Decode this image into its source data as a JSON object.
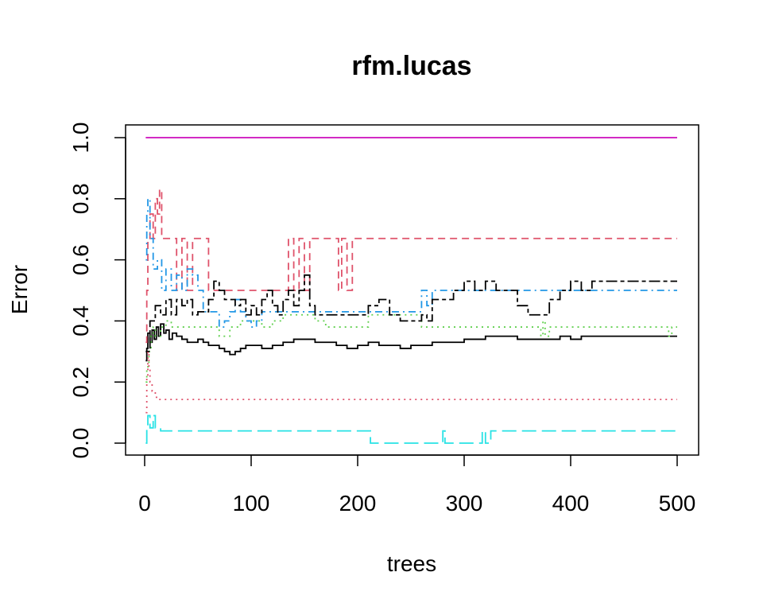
{
  "chart_data": {
    "type": "line",
    "title": "rfm.lucas",
    "xlabel": "trees",
    "ylabel": "Error",
    "xlim": [
      0,
      500
    ],
    "ylim": [
      0,
      1
    ],
    "xticks": [
      "0",
      "100",
      "200",
      "300",
      "400",
      "500"
    ],
    "yticks": [
      "0.0",
      "0.2",
      "0.4",
      "0.6",
      "0.8",
      "1.0"
    ],
    "grid": false,
    "legend": "none",
    "series": [
      {
        "color": "#000000",
        "dash": "solid",
        "points": [
          [
            1,
            0.27
          ],
          [
            2,
            0.31
          ],
          [
            3,
            0.36
          ],
          [
            5,
            0.33
          ],
          [
            7,
            0.37
          ],
          [
            9,
            0.34
          ],
          [
            11,
            0.38
          ],
          [
            13,
            0.35
          ],
          [
            15,
            0.39
          ],
          [
            18,
            0.36
          ],
          [
            20,
            0.37
          ],
          [
            23,
            0.34
          ],
          [
            26,
            0.36
          ],
          [
            30,
            0.35
          ],
          [
            35,
            0.34
          ],
          [
            40,
            0.33
          ],
          [
            45,
            0.33
          ],
          [
            50,
            0.34
          ],
          [
            55,
            0.33
          ],
          [
            60,
            0.32
          ],
          [
            70,
            0.31
          ],
          [
            75,
            0.3
          ],
          [
            80,
            0.29
          ],
          [
            85,
            0.3
          ],
          [
            90,
            0.31
          ],
          [
            95,
            0.32
          ],
          [
            100,
            0.32
          ],
          [
            110,
            0.31
          ],
          [
            120,
            0.32
          ],
          [
            130,
            0.33
          ],
          [
            140,
            0.34
          ],
          [
            150,
            0.34
          ],
          [
            160,
            0.33
          ],
          [
            170,
            0.33
          ],
          [
            180,
            0.32
          ],
          [
            190,
            0.31
          ],
          [
            200,
            0.32
          ],
          [
            210,
            0.33
          ],
          [
            220,
            0.32
          ],
          [
            230,
            0.32
          ],
          [
            240,
            0.31
          ],
          [
            250,
            0.32
          ],
          [
            260,
            0.32
          ],
          [
            270,
            0.33
          ],
          [
            280,
            0.33
          ],
          [
            290,
            0.33
          ],
          [
            300,
            0.34
          ],
          [
            310,
            0.34
          ],
          [
            320,
            0.35
          ],
          [
            330,
            0.35
          ],
          [
            340,
            0.35
          ],
          [
            350,
            0.34
          ],
          [
            360,
            0.34
          ],
          [
            370,
            0.34
          ],
          [
            380,
            0.34
          ],
          [
            390,
            0.35
          ],
          [
            400,
            0.34
          ],
          [
            410,
            0.35
          ],
          [
            420,
            0.35
          ],
          [
            430,
            0.35
          ],
          [
            440,
            0.35
          ],
          [
            450,
            0.35
          ],
          [
            460,
            0.35
          ],
          [
            470,
            0.35
          ],
          [
            480,
            0.35
          ],
          [
            490,
            0.35
          ],
          [
            500,
            0.35
          ]
        ]
      },
      {
        "color": "#df536b",
        "dash": "dashed",
        "points": [
          [
            1,
            0.33
          ],
          [
            2,
            0.5
          ],
          [
            3,
            0.67
          ],
          [
            5,
            0.75
          ],
          [
            8,
            0.67
          ],
          [
            10,
            0.8
          ],
          [
            12,
            0.75
          ],
          [
            14,
            0.83
          ],
          [
            16,
            0.67
          ],
          [
            20,
            0.67
          ],
          [
            25,
            0.67
          ],
          [
            30,
            0.5
          ],
          [
            35,
            0.67
          ],
          [
            40,
            0.5
          ],
          [
            45,
            0.67
          ],
          [
            55,
            0.67
          ],
          [
            60,
            0.5
          ],
          [
            70,
            0.5
          ],
          [
            80,
            0.5
          ],
          [
            90,
            0.5
          ],
          [
            100,
            0.5
          ],
          [
            110,
            0.5
          ],
          [
            120,
            0.5
          ],
          [
            130,
            0.5
          ],
          [
            135,
            0.67
          ],
          [
            140,
            0.5
          ],
          [
            145,
            0.67
          ],
          [
            150,
            0.5
          ],
          [
            155,
            0.67
          ],
          [
            160,
            0.67
          ],
          [
            170,
            0.67
          ],
          [
            180,
            0.67
          ],
          [
            182,
            0.5
          ],
          [
            185,
            0.67
          ],
          [
            190,
            0.5
          ],
          [
            195,
            0.67
          ],
          [
            200,
            0.67
          ],
          [
            210,
            0.67
          ],
          [
            250,
            0.67
          ],
          [
            300,
            0.67
          ],
          [
            350,
            0.67
          ],
          [
            400,
            0.67
          ],
          [
            450,
            0.67
          ],
          [
            500,
            0.67
          ]
        ]
      },
      {
        "color": "#61d04f",
        "dash": "dotted",
        "points": [
          [
            1,
            0.2
          ],
          [
            2,
            0.25
          ],
          [
            4,
            0.3
          ],
          [
            6,
            0.35
          ],
          [
            8,
            0.38
          ],
          [
            10,
            0.35
          ],
          [
            15,
            0.38
          ],
          [
            20,
            0.4
          ],
          [
            25,
            0.38
          ],
          [
            30,
            0.38
          ],
          [
            40,
            0.38
          ],
          [
            50,
            0.38
          ],
          [
            60,
            0.38
          ],
          [
            70,
            0.35
          ],
          [
            80,
            0.38
          ],
          [
            90,
            0.4
          ],
          [
            100,
            0.4
          ],
          [
            110,
            0.38
          ],
          [
            120,
            0.4
          ],
          [
            130,
            0.42
          ],
          [
            140,
            0.42
          ],
          [
            150,
            0.42
          ],
          [
            160,
            0.4
          ],
          [
            170,
            0.38
          ],
          [
            180,
            0.38
          ],
          [
            200,
            0.38
          ],
          [
            210,
            0.42
          ],
          [
            220,
            0.42
          ],
          [
            240,
            0.42
          ],
          [
            260,
            0.38
          ],
          [
            280,
            0.38
          ],
          [
            300,
            0.38
          ],
          [
            340,
            0.38
          ],
          [
            370,
            0.38
          ],
          [
            372,
            0.35
          ],
          [
            374,
            0.4
          ],
          [
            376,
            0.35
          ],
          [
            380,
            0.38
          ],
          [
            420,
            0.38
          ],
          [
            460,
            0.38
          ],
          [
            490,
            0.38
          ],
          [
            492,
            0.35
          ],
          [
            495,
            0.38
          ],
          [
            500,
            0.38
          ]
        ]
      },
      {
        "color": "#2297e6",
        "dash": "dotdash",
        "points": [
          [
            1,
            0.6
          ],
          [
            2,
            0.75
          ],
          [
            3,
            0.8
          ],
          [
            5,
            0.67
          ],
          [
            8,
            0.57
          ],
          [
            12,
            0.6
          ],
          [
            16,
            0.5
          ],
          [
            20,
            0.57
          ],
          [
            25,
            0.5
          ],
          [
            30,
            0.55
          ],
          [
            35,
            0.5
          ],
          [
            40,
            0.57
          ],
          [
            45,
            0.55
          ],
          [
            50,
            0.5
          ],
          [
            55,
            0.43
          ],
          [
            60,
            0.43
          ],
          [
            65,
            0.43
          ],
          [
            70,
            0.38
          ],
          [
            75,
            0.4
          ],
          [
            80,
            0.43
          ],
          [
            85,
            0.47
          ],
          [
            90,
            0.43
          ],
          [
            95,
            0.4
          ],
          [
            100,
            0.38
          ],
          [
            105,
            0.4
          ],
          [
            110,
            0.43
          ],
          [
            120,
            0.43
          ],
          [
            140,
            0.43
          ],
          [
            160,
            0.43
          ],
          [
            200,
            0.43
          ],
          [
            240,
            0.43
          ],
          [
            255,
            0.43
          ],
          [
            260,
            0.5
          ],
          [
            265,
            0.45
          ],
          [
            270,
            0.5
          ],
          [
            300,
            0.5
          ],
          [
            350,
            0.5
          ],
          [
            400,
            0.5
          ],
          [
            450,
            0.5
          ],
          [
            500,
            0.5
          ]
        ]
      },
      {
        "color": "#28e2e5",
        "dash": "longdash",
        "points": [
          [
            1,
            0.0
          ],
          [
            2,
            0.05
          ],
          [
            3,
            0.09
          ],
          [
            5,
            0.05
          ],
          [
            8,
            0.09
          ],
          [
            10,
            0.05
          ],
          [
            15,
            0.04
          ],
          [
            20,
            0.04
          ],
          [
            50,
            0.04
          ],
          [
            100,
            0.04
          ],
          [
            150,
            0.04
          ],
          [
            200,
            0.04
          ],
          [
            210,
            0.04
          ],
          [
            212,
            0.0
          ],
          [
            230,
            0.0
          ],
          [
            250,
            0.0
          ],
          [
            270,
            0.0
          ],
          [
            278,
            0.0
          ],
          [
            280,
            0.04
          ],
          [
            282,
            0.0
          ],
          [
            300,
            0.0
          ],
          [
            315,
            0.0
          ],
          [
            317,
            0.04
          ],
          [
            320,
            0.0
          ],
          [
            325,
            0.04
          ],
          [
            350,
            0.04
          ],
          [
            400,
            0.04
          ],
          [
            450,
            0.04
          ],
          [
            500,
            0.04
          ]
        ]
      },
      {
        "color": "#cd0bbc",
        "dash": "solid",
        "points": [
          [
            1,
            1.0
          ],
          [
            500,
            1.0
          ]
        ]
      },
      {
        "color": "#000000",
        "dash": "twodash",
        "points": [
          [
            1,
            0.3
          ],
          [
            5,
            0.4
          ],
          [
            10,
            0.45
          ],
          [
            15,
            0.42
          ],
          [
            20,
            0.47
          ],
          [
            25,
            0.42
          ],
          [
            30,
            0.47
          ],
          [
            35,
            0.45
          ],
          [
            40,
            0.47
          ],
          [
            45,
            0.42
          ],
          [
            50,
            0.43
          ],
          [
            55,
            0.43
          ],
          [
            60,
            0.47
          ],
          [
            65,
            0.53
          ],
          [
            70,
            0.5
          ],
          [
            75,
            0.47
          ],
          [
            80,
            0.47
          ],
          [
            85,
            0.45
          ],
          [
            90,
            0.47
          ],
          [
            95,
            0.42
          ],
          [
            100,
            0.45
          ],
          [
            105,
            0.42
          ],
          [
            110,
            0.47
          ],
          [
            115,
            0.5
          ],
          [
            120,
            0.45
          ],
          [
            125,
            0.42
          ],
          [
            130,
            0.47
          ],
          [
            135,
            0.5
          ],
          [
            140,
            0.45
          ],
          [
            145,
            0.5
          ],
          [
            150,
            0.55
          ],
          [
            155,
            0.45
          ],
          [
            160,
            0.42
          ],
          [
            170,
            0.42
          ],
          [
            180,
            0.42
          ],
          [
            190,
            0.42
          ],
          [
            200,
            0.42
          ],
          [
            210,
            0.45
          ],
          [
            220,
            0.47
          ],
          [
            230,
            0.42
          ],
          [
            240,
            0.4
          ],
          [
            250,
            0.4
          ],
          [
            260,
            0.42
          ],
          [
            265,
            0.4
          ],
          [
            270,
            0.47
          ],
          [
            280,
            0.47
          ],
          [
            290,
            0.5
          ],
          [
            300,
            0.53
          ],
          [
            310,
            0.5
          ],
          [
            320,
            0.53
          ],
          [
            330,
            0.5
          ],
          [
            340,
            0.5
          ],
          [
            350,
            0.45
          ],
          [
            360,
            0.42
          ],
          [
            370,
            0.42
          ],
          [
            380,
            0.47
          ],
          [
            390,
            0.5
          ],
          [
            400,
            0.53
          ],
          [
            410,
            0.5
          ],
          [
            420,
            0.53
          ],
          [
            430,
            0.53
          ],
          [
            440,
            0.53
          ],
          [
            450,
            0.53
          ],
          [
            460,
            0.53
          ],
          [
            470,
            0.53
          ],
          [
            480,
            0.53
          ],
          [
            490,
            0.53
          ],
          [
            500,
            0.53
          ]
        ]
      },
      {
        "color": "#df536b",
        "dash": "dotted",
        "points": [
          [
            1,
            0.1
          ],
          [
            2,
            0.22
          ],
          [
            3,
            0.3
          ],
          [
            4,
            0.25
          ],
          [
            5,
            0.2
          ],
          [
            7,
            0.17
          ],
          [
            10,
            0.15
          ],
          [
            12,
            0.143
          ],
          [
            20,
            0.143
          ],
          [
            100,
            0.143
          ],
          [
            200,
            0.143
          ],
          [
            300,
            0.143
          ],
          [
            400,
            0.143
          ],
          [
            500,
            0.143
          ]
        ]
      }
    ]
  }
}
